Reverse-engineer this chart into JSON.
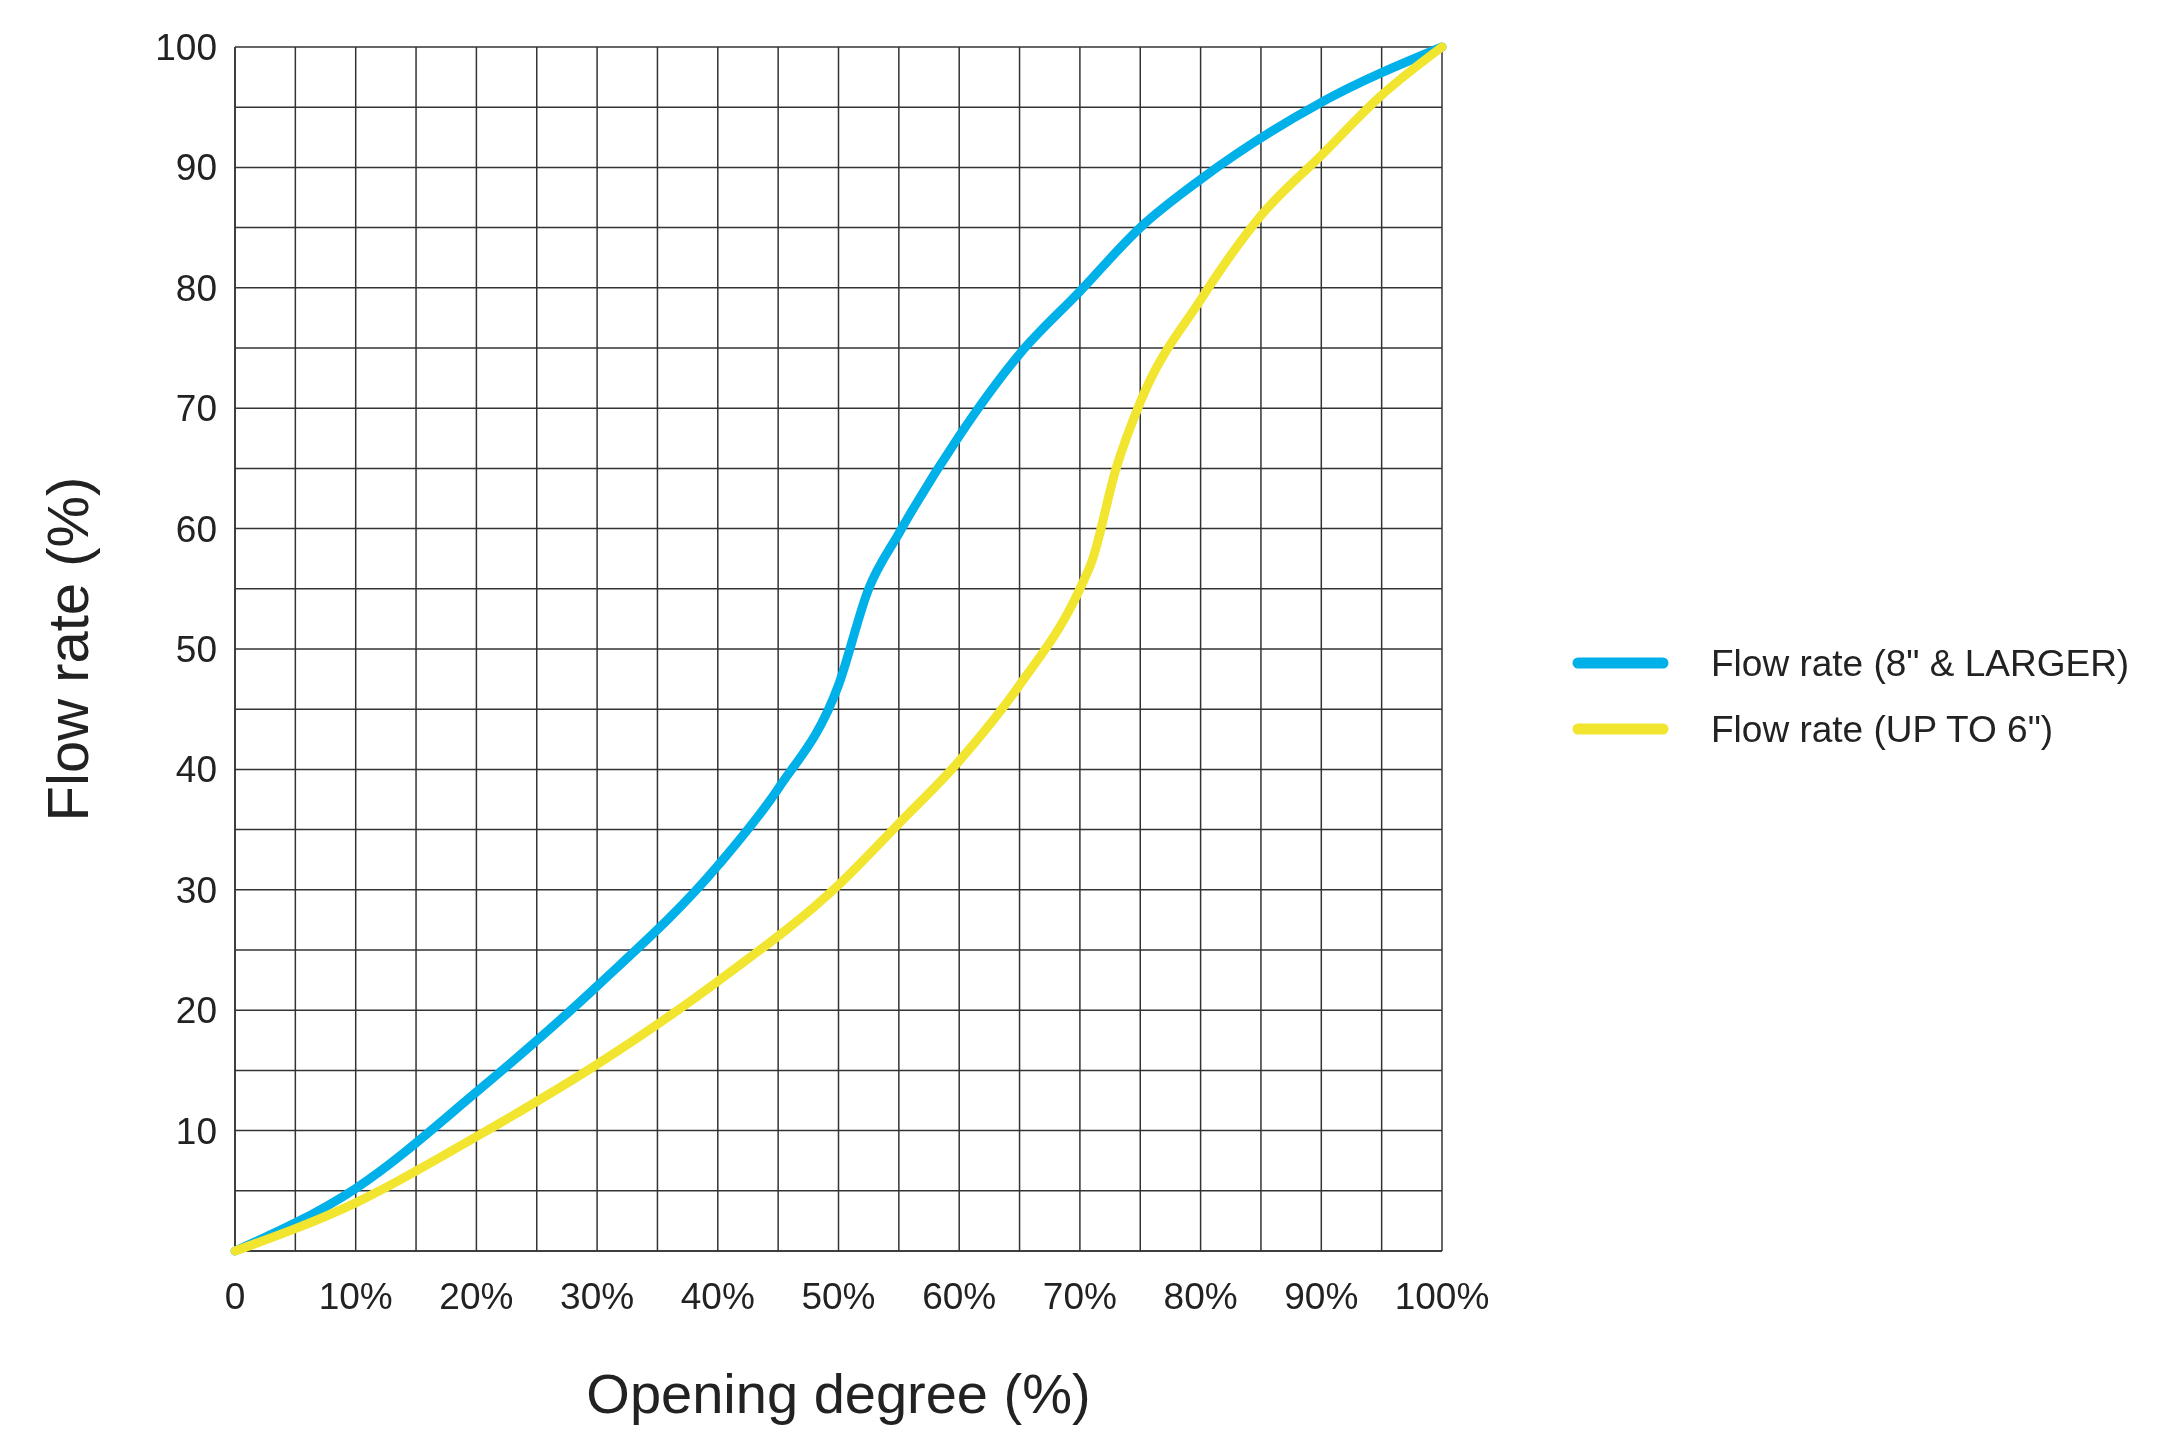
{
  "chart_data": {
    "type": "line",
    "xlabel": "Opening degree (%)",
    "ylabel": "Flow rate (%)",
    "xlim": [
      0,
      100
    ],
    "ylim": [
      0,
      100
    ],
    "xticks": [
      {
        "value": 0,
        "label": "0"
      },
      {
        "value": 5,
        "label": null
      },
      {
        "value": 10,
        "label": "10%"
      },
      {
        "value": 15,
        "label": null
      },
      {
        "value": 20,
        "label": "20%"
      },
      {
        "value": 25,
        "label": null
      },
      {
        "value": 30,
        "label": "30%"
      },
      {
        "value": 35,
        "label": null
      },
      {
        "value": 40,
        "label": "40%"
      },
      {
        "value": 45,
        "label": null
      },
      {
        "value": 50,
        "label": "50%"
      },
      {
        "value": 55,
        "label": null
      },
      {
        "value": 60,
        "label": "60%"
      },
      {
        "value": 65,
        "label": null
      },
      {
        "value": 70,
        "label": "70%"
      },
      {
        "value": 75,
        "label": null
      },
      {
        "value": 80,
        "label": "80%"
      },
      {
        "value": 85,
        "label": null
      },
      {
        "value": 90,
        "label": "90%"
      },
      {
        "value": 95,
        "label": null
      },
      {
        "value": 100,
        "label": "100%"
      }
    ],
    "yticks": [
      {
        "value": 0,
        "label": null
      },
      {
        "value": 5,
        "label": null
      },
      10,
      {
        "value": 15,
        "label": null
      },
      20,
      {
        "value": 25,
        "label": null
      },
      30,
      {
        "value": 35,
        "label": null
      },
      40,
      {
        "value": 45,
        "label": null
      },
      50,
      {
        "value": 55,
        "label": null
      },
      60,
      {
        "value": 65,
        "label": null
      },
      70,
      {
        "value": 75,
        "label": null
      },
      80,
      {
        "value": 85,
        "label": null
      },
      90,
      {
        "value": 95,
        "label": null
      },
      100
    ],
    "grid": true,
    "legend": "right",
    "marker": "none",
    "line_style": "solid",
    "series": [
      {
        "name": "Flow rate (8\" & LARGER)",
        "color": "#00b0e8",
        "x": [
          0,
          10,
          20,
          30,
          40,
          45,
          50,
          52.5,
          55,
          60,
          65,
          70,
          75,
          80,
          90,
          100
        ],
        "values": [
          0,
          5.2,
          13.2,
          22,
          32,
          38.4,
          47,
          55,
          59.6,
          67.7,
          74.5,
          79.7,
          85,
          89,
          95.4,
          100
        ]
      },
      {
        "name": "Flow rate (UP TO 6\")",
        "color": "#f2e530",
        "x": [
          0,
          10,
          20,
          30,
          40,
          50,
          55,
          60,
          65,
          70,
          71,
          73,
          75,
          80,
          85,
          90,
          95,
          100
        ],
        "values": [
          0,
          4,
          9.5,
          15.5,
          22.4,
          30.4,
          35.5,
          40.7,
          47,
          55,
          57.3,
          65,
          70.5,
          79,
          86,
          91,
          96,
          100
        ]
      }
    ]
  }
}
